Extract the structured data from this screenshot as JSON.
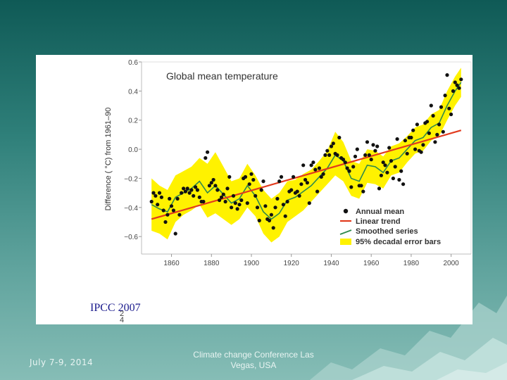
{
  "slide": {
    "caption": "IPCC 2007",
    "footer_date": "July 7-9, 2014",
    "footer_title": "Climate change Conference Las Vegas, USA",
    "side_digits": [
      "2",
      "4"
    ]
  },
  "colors": {
    "background_top": "#0f5a56",
    "background_bottom": "#86bdb6",
    "band": "#fff200",
    "trend": "#e23b1e",
    "smoothed": "#2f8a4c",
    "annual": "#111111",
    "caption": "#1a1a8c"
  },
  "chart_data": {
    "type": "line",
    "title": "Global mean temperature",
    "ylabel": "Difference ( °C) from 1961–90",
    "xlabel": "",
    "xlim": [
      1845,
      2010
    ],
    "ylim": [
      -0.72,
      0.6
    ],
    "x_ticks": [
      1860,
      1880,
      1900,
      1920,
      1940,
      1960,
      1980,
      2000
    ],
    "x_tick_labels": [
      "1860",
      "1880",
      "1900",
      "1920",
      "1940",
      "1960",
      "1980",
      "2000"
    ],
    "y_ticks": [
      0.6,
      0.4,
      0.2,
      0.0,
      -0.2,
      -0.4,
      -0.6
    ],
    "y_tick_labels": [
      "0.6",
      "0.4",
      "0.2",
      "0.0",
      "−0.2",
      "−0.4",
      "−0.6"
    ],
    "legend": {
      "placement": "bottom-right",
      "entries": [
        {
          "label": "Annual mean",
          "kind": "dot"
        },
        {
          "label": "Linear trend",
          "kind": "trend"
        },
        {
          "label": "Smoothed series",
          "kind": "smoothed"
        },
        {
          "label": "95% decadal error bars",
          "kind": "band"
        }
      ]
    },
    "linear_trend": {
      "x": [
        1850,
        2005
      ],
      "y": [
        -0.48,
        0.13
      ]
    },
    "smoothed_series": {
      "x": [
        1850,
        1854,
        1858,
        1862,
        1866,
        1870,
        1874,
        1878,
        1882,
        1886,
        1890,
        1894,
        1898,
        1902,
        1906,
        1910,
        1914,
        1918,
        1922,
        1926,
        1930,
        1934,
        1938,
        1942,
        1946,
        1950,
        1954,
        1958,
        1962,
        1966,
        1970,
        1974,
        1978,
        1982,
        1986,
        1990,
        1994,
        1998,
        2002,
        2005
      ],
      "y": [
        -0.38,
        -0.41,
        -0.43,
        -0.33,
        -0.3,
        -0.27,
        -0.22,
        -0.3,
        -0.25,
        -0.31,
        -0.37,
        -0.34,
        -0.25,
        -0.32,
        -0.43,
        -0.48,
        -0.44,
        -0.35,
        -0.33,
        -0.29,
        -0.25,
        -0.19,
        -0.13,
        -0.04,
        -0.08,
        -0.2,
        -0.22,
        -0.11,
        -0.12,
        -0.16,
        -0.08,
        -0.06,
        0.0,
        0.06,
        0.08,
        0.15,
        0.18,
        0.3,
        0.4,
        0.46
      ]
    },
    "error_band": {
      "x": [
        1850,
        1854,
        1858,
        1862,
        1866,
        1870,
        1874,
        1878,
        1882,
        1886,
        1890,
        1894,
        1898,
        1902,
        1906,
        1910,
        1914,
        1918,
        1922,
        1926,
        1930,
        1934,
        1938,
        1942,
        1946,
        1950,
        1954,
        1958,
        1962,
        1966,
        1970,
        1974,
        1978,
        1982,
        1986,
        1990,
        1994,
        1998,
        2002,
        2005
      ],
      "upper": [
        -0.2,
        -0.25,
        -0.28,
        -0.18,
        -0.15,
        -0.12,
        -0.06,
        -0.1,
        -0.02,
        -0.12,
        -0.22,
        -0.2,
        -0.1,
        -0.18,
        -0.28,
        -0.34,
        -0.3,
        -0.22,
        -0.21,
        -0.17,
        -0.14,
        -0.08,
        -0.01,
        0.12,
        0.05,
        -0.08,
        -0.1,
        0.0,
        -0.01,
        -0.05,
        0.02,
        0.04,
        0.09,
        0.15,
        0.17,
        0.24,
        0.27,
        0.4,
        0.5,
        0.56
      ],
      "lower": [
        -0.56,
        -0.58,
        -0.62,
        -0.5,
        -0.45,
        -0.42,
        -0.38,
        -0.47,
        -0.44,
        -0.48,
        -0.52,
        -0.48,
        -0.4,
        -0.46,
        -0.58,
        -0.64,
        -0.6,
        -0.5,
        -0.46,
        -0.42,
        -0.36,
        -0.3,
        -0.24,
        -0.18,
        -0.22,
        -0.32,
        -0.34,
        -0.23,
        -0.24,
        -0.27,
        -0.18,
        -0.16,
        -0.09,
        -0.03,
        -0.01,
        0.06,
        0.09,
        0.2,
        0.3,
        0.36
      ]
    },
    "annual_mean": {
      "x": [
        1850,
        1851,
        1852,
        1853,
        1854,
        1855,
        1856,
        1857,
        1858,
        1859,
        1860,
        1861,
        1862,
        1863,
        1864,
        1865,
        1866,
        1867,
        1868,
        1869,
        1870,
        1871,
        1872,
        1873,
        1874,
        1875,
        1876,
        1877,
        1878,
        1879,
        1880,
        1881,
        1882,
        1883,
        1884,
        1885,
        1886,
        1887,
        1888,
        1889,
        1890,
        1891,
        1892,
        1893,
        1894,
        1895,
        1896,
        1897,
        1898,
        1899,
        1900,
        1901,
        1902,
        1903,
        1904,
        1905,
        1906,
        1907,
        1908,
        1909,
        1910,
        1911,
        1912,
        1913,
        1914,
        1915,
        1916,
        1917,
        1918,
        1919,
        1920,
        1921,
        1922,
        1923,
        1924,
        1925,
        1926,
        1927,
        1928,
        1929,
        1930,
        1931,
        1932,
        1933,
        1934,
        1935,
        1936,
        1937,
        1938,
        1939,
        1940,
        1941,
        1942,
        1943,
        1944,
        1945,
        1946,
        1947,
        1948,
        1949,
        1950,
        1951,
        1952,
        1953,
        1954,
        1955,
        1956,
        1957,
        1958,
        1959,
        1960,
        1961,
        1962,
        1963,
        1964,
        1965,
        1966,
        1967,
        1968,
        1969,
        1970,
        1971,
        1972,
        1973,
        1974,
        1975,
        1976,
        1977,
        1978,
        1979,
        1980,
        1981,
        1982,
        1983,
        1984,
        1985,
        1986,
        1987,
        1988,
        1989,
        1990,
        1991,
        1992,
        1993,
        1994,
        1995,
        1996,
        1997,
        1998,
        1999,
        2000,
        2001,
        2002,
        2003,
        2004,
        2005
      ],
      "y": [
        -0.36,
        -0.3,
        -0.32,
        -0.38,
        -0.3,
        -0.33,
        -0.42,
        -0.5,
        -0.45,
        -0.34,
        -0.39,
        -0.42,
        -0.58,
        -0.34,
        -0.45,
        -0.3,
        -0.27,
        -0.29,
        -0.27,
        -0.3,
        -0.28,
        -0.32,
        -0.26,
        -0.28,
        -0.33,
        -0.36,
        -0.36,
        -0.06,
        -0.02,
        -0.25,
        -0.23,
        -0.21,
        -0.25,
        -0.28,
        -0.35,
        -0.33,
        -0.31,
        -0.36,
        -0.27,
        -0.19,
        -0.4,
        -0.32,
        -0.37,
        -0.41,
        -0.38,
        -0.35,
        -0.2,
        -0.19,
        -0.37,
        -0.24,
        -0.17,
        -0.21,
        -0.32,
        -0.4,
        -0.49,
        -0.28,
        -0.22,
        -0.39,
        -0.48,
        -0.49,
        -0.45,
        -0.54,
        -0.4,
        -0.34,
        -0.22,
        -0.19,
        -0.38,
        -0.46,
        -0.36,
        -0.29,
        -0.28,
        -0.19,
        -0.3,
        -0.29,
        -0.32,
        -0.24,
        -0.11,
        -0.21,
        -0.23,
        -0.37,
        -0.11,
        -0.09,
        -0.14,
        -0.29,
        -0.13,
        -0.19,
        -0.17,
        -0.04,
        -0.01,
        -0.04,
        0.02,
        0.04,
        -0.03,
        -0.04,
        0.08,
        -0.06,
        -0.07,
        -0.09,
        -0.13,
        -0.15,
        -0.26,
        -0.12,
        -0.05,
        0.0,
        -0.25,
        -0.25,
        -0.29,
        -0.04,
        0.05,
        -0.04,
        -0.07,
        0.03,
        -0.01,
        0.02,
        -0.27,
        -0.18,
        -0.09,
        -0.11,
        -0.16,
        0.01,
        -0.08,
        -0.2,
        -0.12,
        0.07,
        -0.21,
        -0.15,
        -0.24,
        0.06,
        -0.03,
        0.08,
        0.08,
        0.13,
        0.0,
        0.17,
        -0.01,
        -0.02,
        0.03,
        0.18,
        0.19,
        0.11,
        0.3,
        0.23,
        0.05,
        0.1,
        0.17,
        0.29,
        0.12,
        0.37,
        0.51,
        0.28,
        0.24,
        0.4,
        0.46,
        0.44,
        0.42,
        0.48
      ]
    }
  }
}
